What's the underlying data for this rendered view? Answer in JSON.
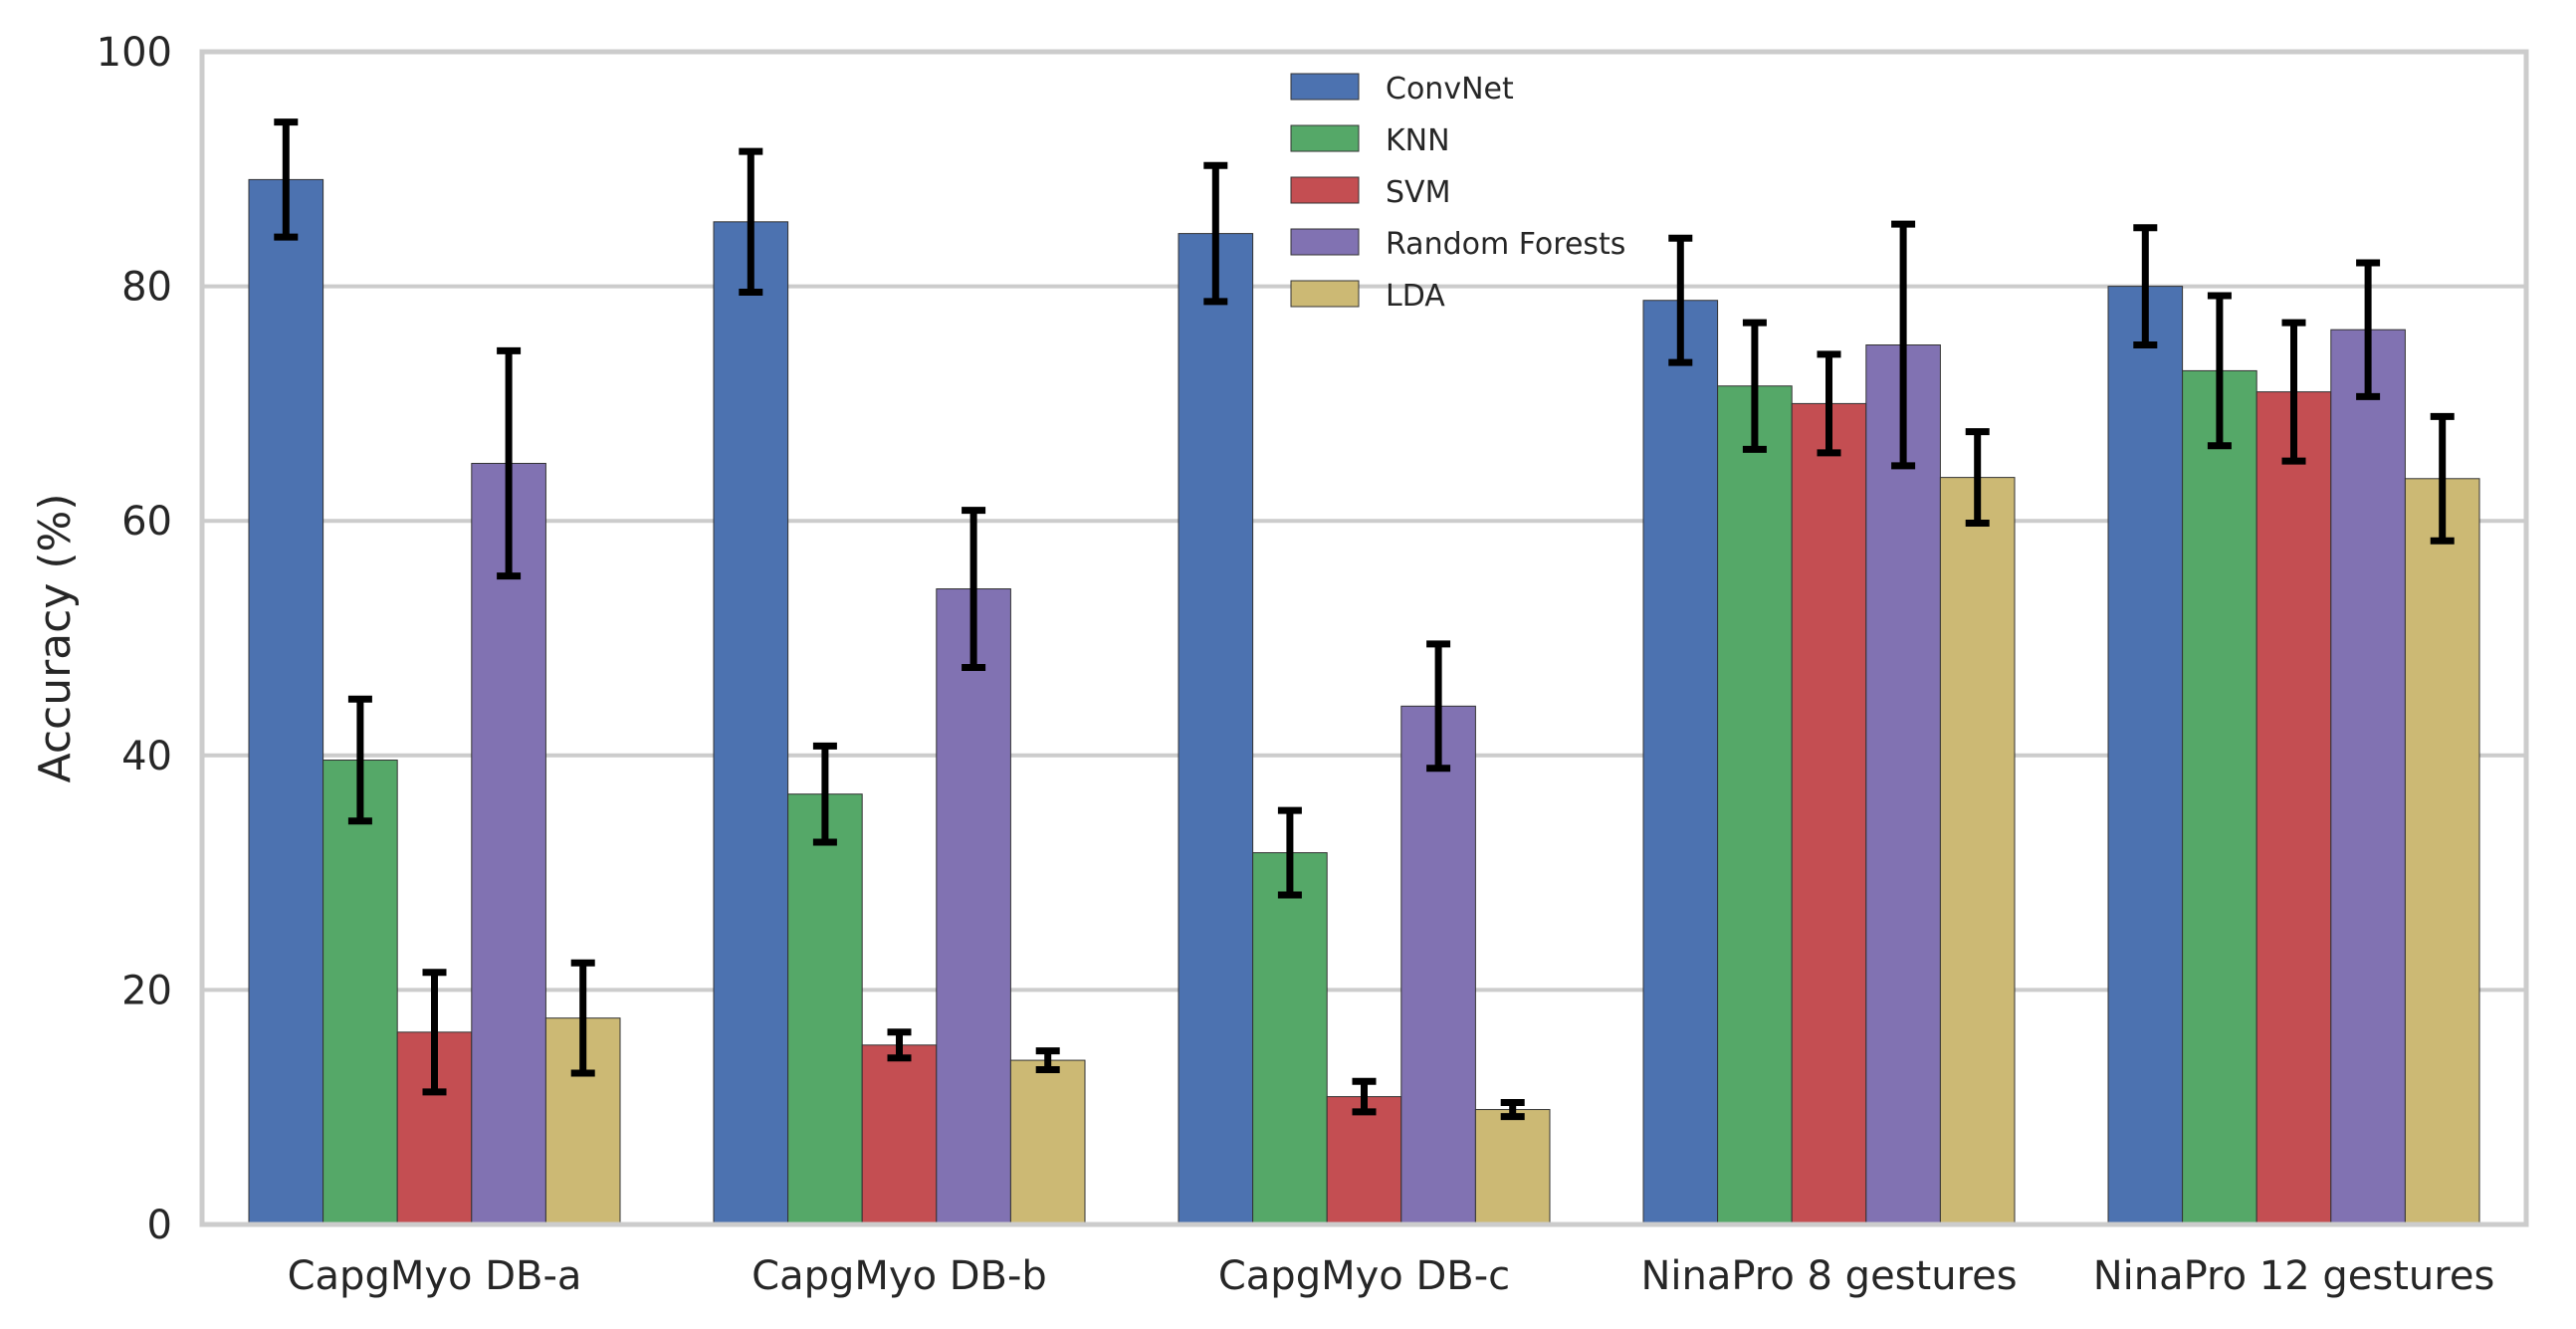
{
  "chart_data": {
    "type": "bar",
    "title": "",
    "xlabel": "",
    "ylabel": "Accuracy (%)",
    "ylim": [
      0,
      100
    ],
    "yticks": [
      0,
      20,
      40,
      60,
      80,
      100
    ],
    "grid": "y",
    "legend_position": "top-center",
    "categories": [
      "CapgMyo DB-a",
      "CapgMyo DB-b",
      "CapgMyo DB-c",
      "NinaPro 8 gestures",
      "NinaPro 12 gestures"
    ],
    "series": [
      {
        "name": "ConvNet",
        "color": "#4c72b0",
        "values": [
          89.1,
          85.5,
          84.5,
          78.8,
          80.0
        ],
        "errors": [
          4.9,
          6.0,
          5.8,
          5.3,
          5.0
        ]
      },
      {
        "name": "KNN",
        "color": "#55a868",
        "values": [
          39.6,
          36.7,
          31.7,
          71.5,
          72.8
        ],
        "errors": [
          5.2,
          4.1,
          3.6,
          5.4,
          6.4
        ]
      },
      {
        "name": "SVM",
        "color": "#c44e52",
        "values": [
          16.4,
          15.3,
          10.9,
          70.0,
          71.0
        ],
        "errors": [
          5.1,
          1.1,
          1.3,
          4.2,
          5.9
        ]
      },
      {
        "name": "Random Forests",
        "color": "#8172b2",
        "values": [
          64.9,
          54.2,
          44.2,
          75.0,
          76.3
        ],
        "errors": [
          9.6,
          6.7,
          5.3,
          10.3,
          5.7
        ]
      },
      {
        "name": "LDA",
        "color": "#ccb974",
        "values": [
          17.6,
          14.0,
          9.8,
          63.7,
          63.6
        ],
        "errors": [
          4.7,
          0.8,
          0.6,
          3.9,
          5.3
        ]
      }
    ]
  }
}
